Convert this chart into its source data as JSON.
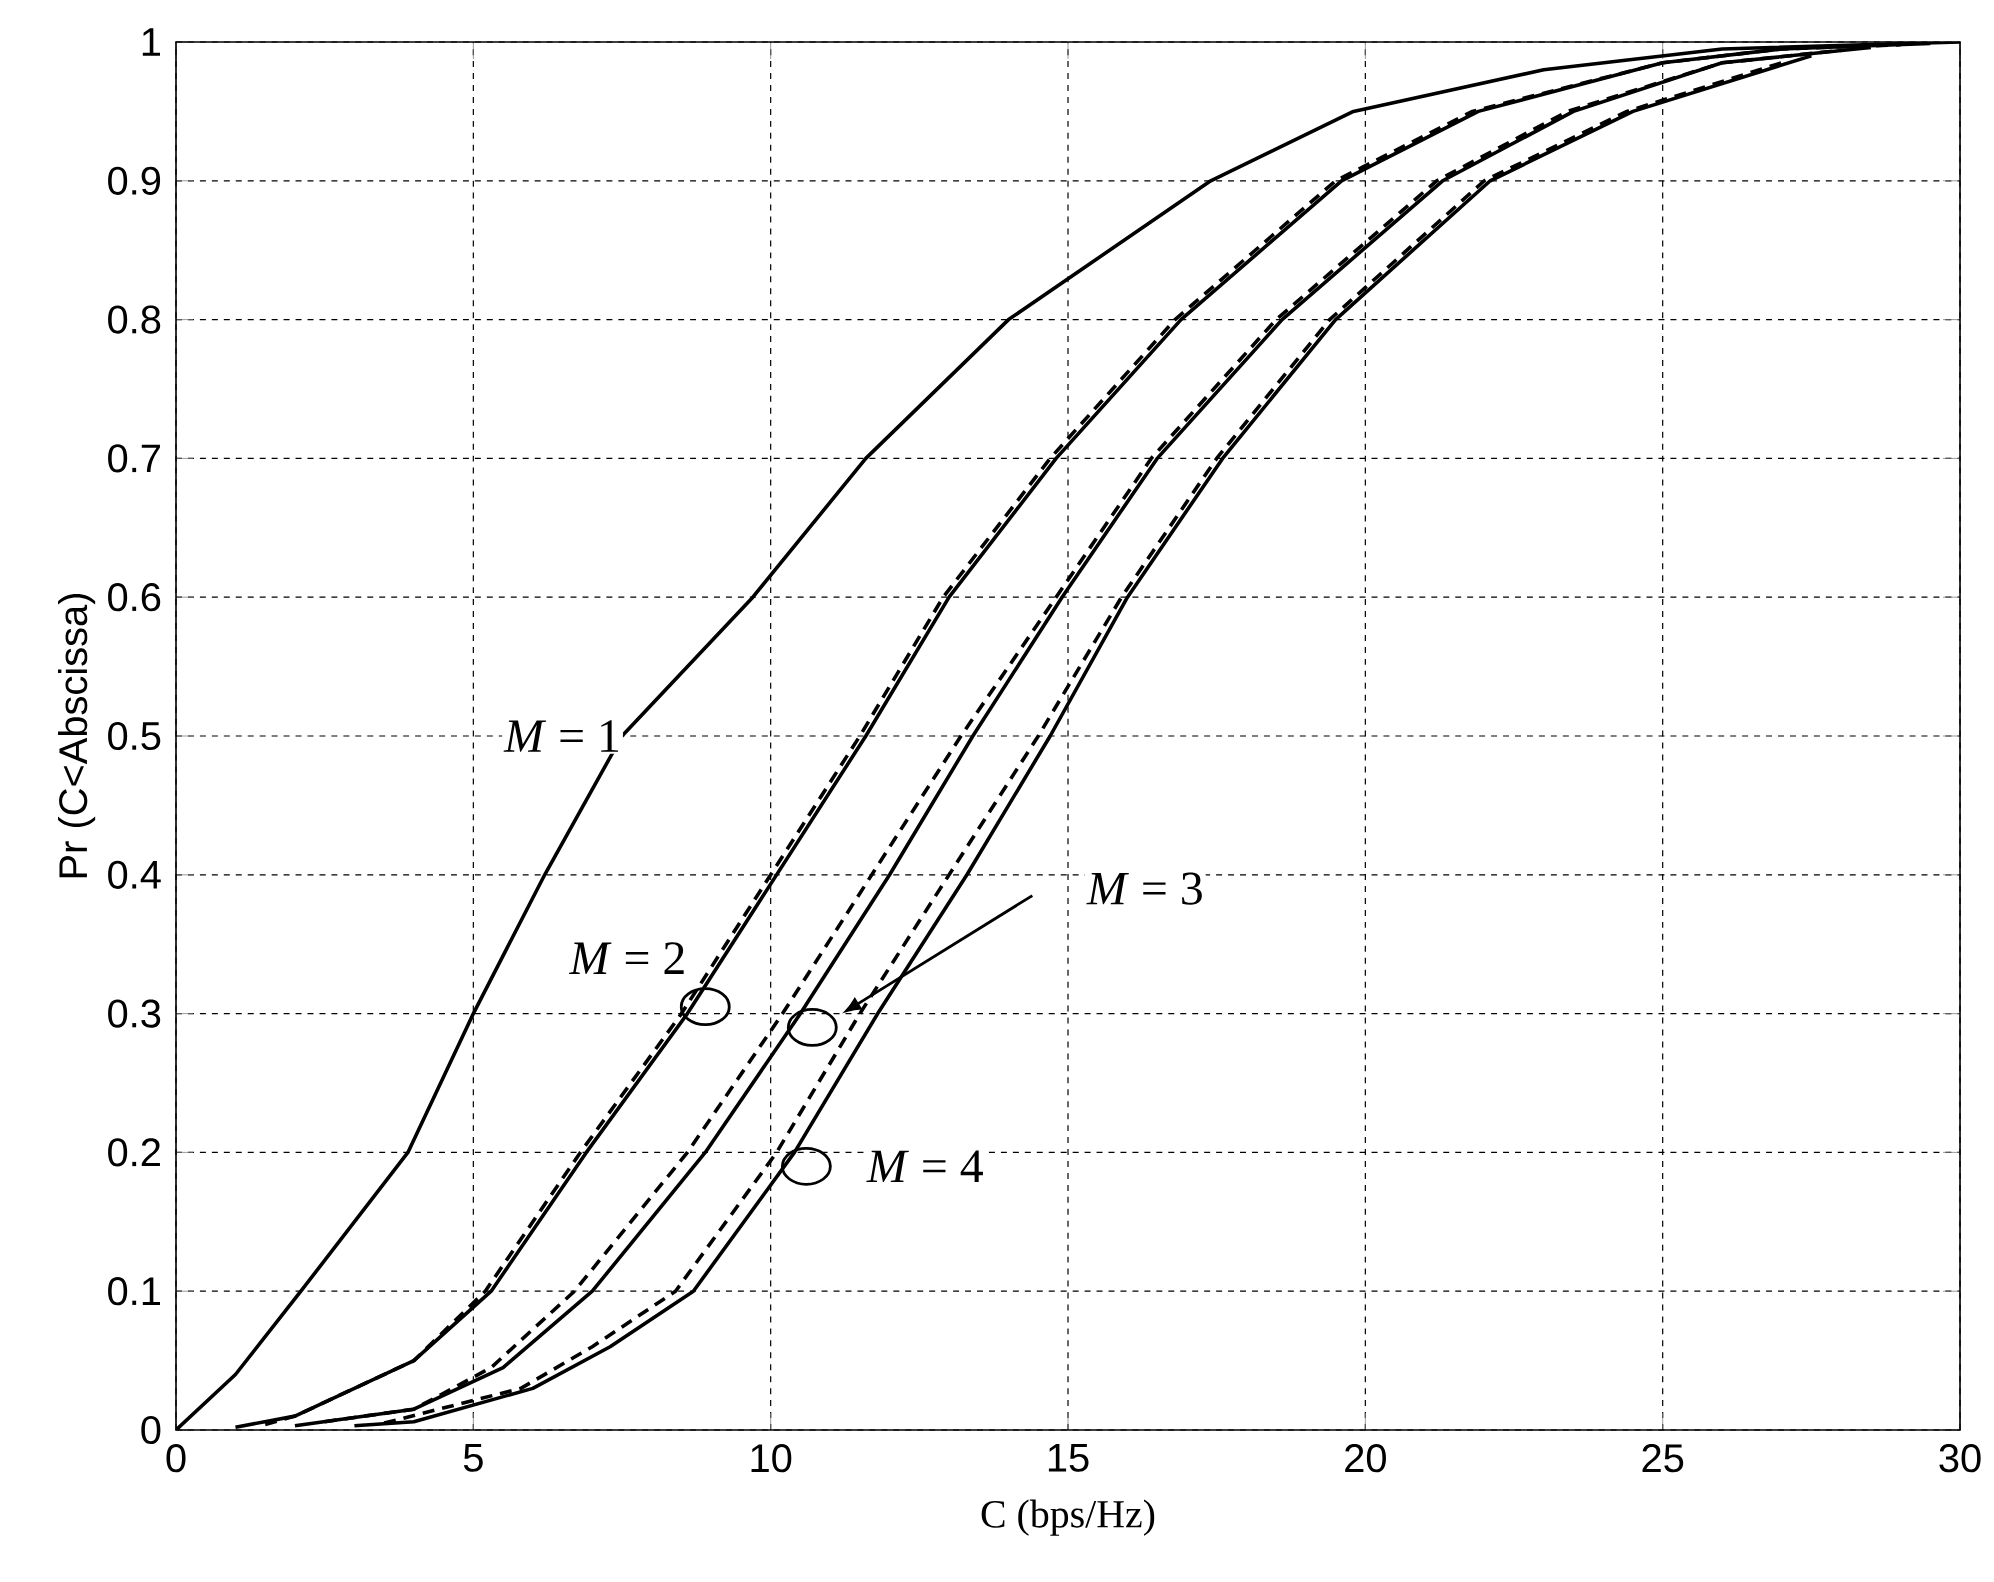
{
  "chart_data": {
    "type": "line",
    "xlabel": "C (bps/Hz)",
    "ylabel": "Pr (C<Abscissa)",
    "xlim": [
      0,
      30
    ],
    "ylim": [
      0,
      1
    ],
    "xticks": [
      0,
      5,
      10,
      15,
      20,
      25,
      30
    ],
    "yticks": [
      0,
      0.1,
      0.2,
      0.3,
      0.4,
      0.5,
      0.6,
      0.7,
      0.8,
      0.9,
      1
    ],
    "grid": true,
    "annotations": [
      "*M* = 1",
      "*M* = 2",
      "*M* = 3",
      "*M* = 4"
    ],
    "series": [
      {
        "color": "#000000",
        "line_style": "solid",
        "x": [
          0,
          1,
          2.1,
          3.9,
          5,
          6.2,
          7.5,
          9.7,
          11.6,
          14,
          17.4,
          19.8,
          23,
          26,
          30
        ],
        "values": [
          0,
          0.04,
          0.1,
          0.2,
          0.3,
          0.4,
          0.5,
          0.6,
          0.7,
          0.8,
          0.9,
          0.95,
          0.98,
          0.995,
          1
        ]
      },
      {
        "color": "#000000",
        "line_style": "solid",
        "x": [
          1,
          2,
          4,
          5.3,
          6.9,
          8.6,
          10.1,
          11.6,
          13,
          14.8,
          16.9,
          19.6,
          21.9,
          25,
          27,
          29.5
        ],
        "values": [
          0.002,
          0.01,
          0.05,
          0.1,
          0.2,
          0.3,
          0.4,
          0.5,
          0.6,
          0.7,
          0.8,
          0.9,
          0.95,
          0.985,
          0.995,
          0.999
        ]
      },
      {
        "color": "#000000",
        "line_style": "dashed",
        "x": [
          1.5,
          2,
          4,
          5.2,
          6.8,
          8.5,
          10,
          11.5,
          12.9,
          14.7,
          16.8,
          19.5,
          21.8,
          25,
          27,
          29
        ],
        "values": [
          0.004,
          0.01,
          0.05,
          0.1,
          0.2,
          0.3,
          0.4,
          0.5,
          0.6,
          0.7,
          0.8,
          0.9,
          0.95,
          0.985,
          0.995,
          0.998
        ]
      },
      {
        "color": "#000000",
        "line_style": "solid",
        "x": [
          2,
          4,
          5.5,
          7,
          8.9,
          10.5,
          12,
          13.4,
          14.9,
          16.5,
          18.6,
          21.3,
          23.5,
          26,
          28.5
        ],
        "values": [
          0.003,
          0.015,
          0.045,
          0.1,
          0.2,
          0.3,
          0.4,
          0.5,
          0.6,
          0.7,
          0.8,
          0.9,
          0.95,
          0.985,
          0.996
        ]
      },
      {
        "color": "#000000",
        "line_style": "dashed",
        "x": [
          2.5,
          4,
          5.3,
          6.7,
          8.6,
          10.2,
          11.7,
          13.2,
          14.8,
          16.4,
          18.5,
          21.2,
          23.4,
          26,
          28
        ],
        "values": [
          0.006,
          0.015,
          0.045,
          0.1,
          0.2,
          0.3,
          0.4,
          0.5,
          0.6,
          0.7,
          0.8,
          0.9,
          0.95,
          0.985,
          0.994
        ]
      },
      {
        "color": "#000000",
        "line_style": "solid",
        "x": [
          3,
          4,
          6,
          7.3,
          8.7,
          10.4,
          11.8,
          13.3,
          14.7,
          16,
          17.6,
          19.5,
          22.1,
          24.5,
          27.5
        ],
        "values": [
          0.003,
          0.006,
          0.03,
          0.06,
          0.1,
          0.2,
          0.3,
          0.4,
          0.5,
          0.6,
          0.7,
          0.8,
          0.9,
          0.95,
          0.99
        ]
      },
      {
        "color": "#000000",
        "line_style": "dashed",
        "x": [
          3.5,
          5.8,
          7,
          8.4,
          10.1,
          11.5,
          13,
          14.5,
          15.9,
          17.5,
          19.4,
          22,
          24.4,
          27
        ],
        "values": [
          0.005,
          0.03,
          0.06,
          0.1,
          0.2,
          0.3,
          0.4,
          0.5,
          0.6,
          0.7,
          0.8,
          0.9,
          0.95,
          0.985
        ]
      }
    ]
  }
}
